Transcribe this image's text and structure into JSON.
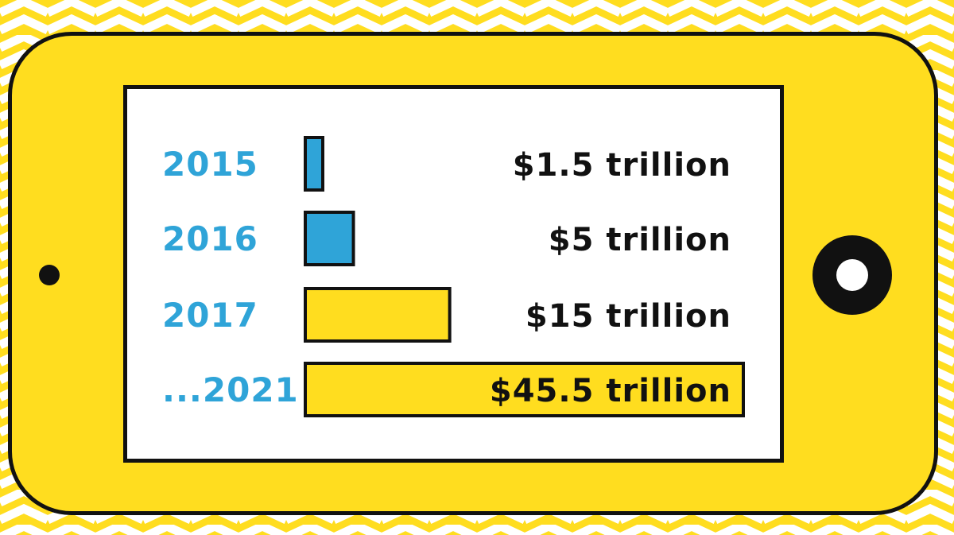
{
  "colors": {
    "background_yellow": "#FFDD1F",
    "phone_yellow": "#FFDD1F",
    "outline": "#111111",
    "screen": "#FFFFFF",
    "year_blue": "#2FA4D8",
    "bar_blue": "#2FA4D8",
    "bar_yellow": "#FFDD1F",
    "value_text": "#111111"
  },
  "chart_data": {
    "type": "bar",
    "orientation": "horizontal",
    "title": "",
    "xlabel": "",
    "ylabel": "",
    "categories": [
      "2015",
      "2016",
      "2017",
      "...2021"
    ],
    "values": [
      1.5,
      5,
      15,
      45.5
    ],
    "unit": "trillion USD",
    "value_labels": [
      "$1.5 trillion",
      "$5 trillion",
      "$15 trillion",
      "$45.5 trillion"
    ],
    "bar_colors": [
      "#2FA4D8",
      "#2FA4D8",
      "#FFDD1F",
      "#FFDD1F"
    ],
    "xlim": [
      0,
      45.5
    ],
    "grid": false,
    "legend": "none"
  }
}
